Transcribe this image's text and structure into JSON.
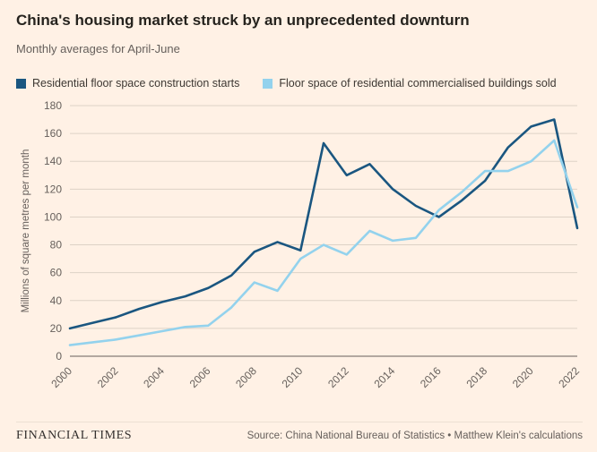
{
  "chart_data": {
    "type": "line",
    "title": "China's housing market struck by an unprecedented downturn",
    "subtitle": "Monthly averages for April-June",
    "ylabel": "Millions of square metres per month",
    "ylim": [
      0,
      180
    ],
    "ytick_step": 20,
    "grid": "horizontal-only",
    "legend_position": "top",
    "x": [
      2000,
      2001,
      2002,
      2003,
      2004,
      2005,
      2006,
      2007,
      2008,
      2009,
      2010,
      2011,
      2012,
      2013,
      2014,
      2015,
      2016,
      2017,
      2018,
      2019,
      2020,
      2021,
      2022
    ],
    "x_tick_labels": [
      "2000",
      "2002",
      "2004",
      "2006",
      "2008",
      "2010",
      "2012",
      "2014",
      "2016",
      "2018",
      "2020",
      "2022"
    ],
    "colors": {
      "background": "#fff1e5",
      "grid": "#ddd2c6",
      "axis": "#66605c",
      "tick_text": "#66605c"
    },
    "series": [
      {
        "name": "Residential floor space construction starts",
        "color": "#1a5680",
        "values": [
          20,
          24,
          28,
          34,
          39,
          43,
          49,
          58,
          75,
          82,
          76,
          153,
          130,
          138,
          120,
          108,
          100,
          112,
          126,
          150,
          165,
          170,
          92
        ]
      },
      {
        "name": "Floor space of residential commercialised buildings sold",
        "color": "#93d2ed",
        "values": [
          8,
          10,
          12,
          15,
          18,
          21,
          22,
          35,
          53,
          47,
          70,
          80,
          73,
          90,
          83,
          85,
          105,
          118,
          133,
          133,
          140,
          155,
          107
        ]
      }
    ]
  },
  "footer": {
    "brand": "FINANCIAL TIMES",
    "source": "Source: China National Bureau of Statistics • Matthew Klein's calculations"
  }
}
